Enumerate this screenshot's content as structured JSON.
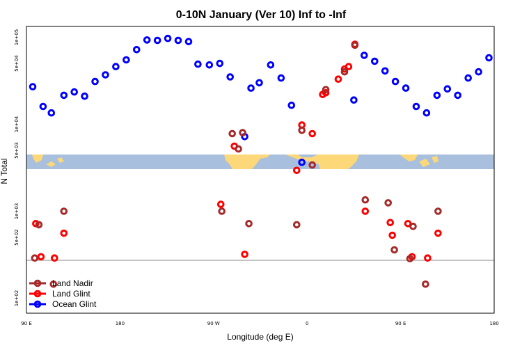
{
  "chart_data": {
    "type": "scatter",
    "title": "0-10N January (Ver 10)   Inf to -Inf",
    "xlabel": "Longitude (deg E)",
    "ylabel": "N Total",
    "x_ticks": [
      "90 E",
      "180",
      "90 W",
      "0",
      "90 E",
      "180"
    ],
    "y_ticks": [
      "1e+02",
      "5e+02",
      "1e+03",
      "5e+03",
      "1e+04",
      "5e+04",
      "1e+05"
    ],
    "y_scale": "log",
    "legend": {
      "position": "bottom-left",
      "entries": [
        "Land Nadir",
        "Land Glint",
        "Ocean Glint"
      ]
    },
    "colors": {
      "land_nadir": "#a52a2a",
      "land_glint": "#ff0000",
      "ocean_glint": "#0000ff",
      "map_ocean": "#a8bfde",
      "map_land": "#fdd878"
    },
    "series": [
      {
        "name": "Ocean Glint",
        "color": "#0000ff",
        "points": [
          [
            -264,
            27000
          ],
          [
            -254,
            16000
          ],
          [
            -246,
            13500
          ],
          [
            -234,
            21500
          ],
          [
            -224,
            23500
          ],
          [
            -214,
            21000
          ],
          [
            -204,
            31000
          ],
          [
            -194,
            37000
          ],
          [
            -184,
            46000
          ],
          [
            -174,
            55000
          ],
          [
            -164,
            72000
          ],
          [
            -154,
            93000
          ],
          [
            -144,
            92000
          ],
          [
            -134,
            97000
          ],
          [
            -124,
            92000
          ],
          [
            -114,
            89000
          ],
          [
            -105,
            49000
          ],
          [
            -94,
            48000
          ],
          [
            -84,
            50000
          ],
          [
            -74,
            35000
          ],
          [
            -60,
            7200
          ],
          [
            -54,
            26000
          ],
          [
            -46,
            30000
          ],
          [
            -35,
            48000
          ],
          [
            -25,
            34000
          ],
          [
            -15,
            16500
          ],
          [
            -5,
            3650
          ],
          [
            45,
            19000
          ],
          [
            55,
            62000
          ],
          [
            65,
            53000
          ],
          [
            75,
            41000
          ],
          [
            85,
            31000
          ],
          [
            95,
            26000
          ],
          [
            105,
            16000
          ],
          [
            115,
            13500
          ],
          [
            125,
            21500
          ],
          [
            135,
            25500
          ],
          [
            145,
            21500
          ],
          [
            155,
            34000
          ],
          [
            165,
            40000
          ],
          [
            175,
            58000
          ]
        ]
      },
      {
        "name": "Land Glint",
        "color": "#ff0000",
        "points": [
          [
            -261,
            720
          ],
          [
            -256,
            300
          ],
          [
            -243,
            290
          ],
          [
            -234,
            560
          ],
          [
            -83,
            1200
          ],
          [
            -70,
            5600
          ],
          [
            -60,
            320
          ],
          [
            -10,
            2950
          ],
          [
            -5,
            9800
          ],
          [
            5,
            7800
          ],
          [
            15,
            22000
          ],
          [
            18,
            23000
          ],
          [
            30,
            33000
          ],
          [
            36,
            43000
          ],
          [
            40,
            46000
          ],
          [
            46,
            83000
          ],
          [
            56,
            1000
          ],
          [
            80,
            740
          ],
          [
            82,
            530
          ],
          [
            97,
            720
          ],
          [
            101,
            300
          ],
          [
            116,
            290
          ],
          [
            126,
            560
          ]
        ]
      },
      {
        "name": "Land Nadir",
        "color": "#a52a2a",
        "points": [
          [
            -262,
            290
          ],
          [
            -258,
            700
          ],
          [
            -244,
            145
          ],
          [
            -234,
            1000
          ],
          [
            -82,
            1000
          ],
          [
            -72,
            7800
          ],
          [
            -66,
            5200
          ],
          [
            -62,
            8000
          ],
          [
            -56,
            720
          ],
          [
            -10,
            700
          ],
          [
            -5,
            8500
          ],
          [
            5,
            3400
          ],
          [
            18,
            25000
          ],
          [
            36,
            40000
          ],
          [
            46,
            81000
          ],
          [
            56,
            1350
          ],
          [
            78,
            1250
          ],
          [
            84,
            360
          ],
          [
            99,
            285
          ],
          [
            102,
            670
          ],
          [
            114,
            145
          ],
          [
            126,
            1000
          ]
        ]
      }
    ]
  }
}
